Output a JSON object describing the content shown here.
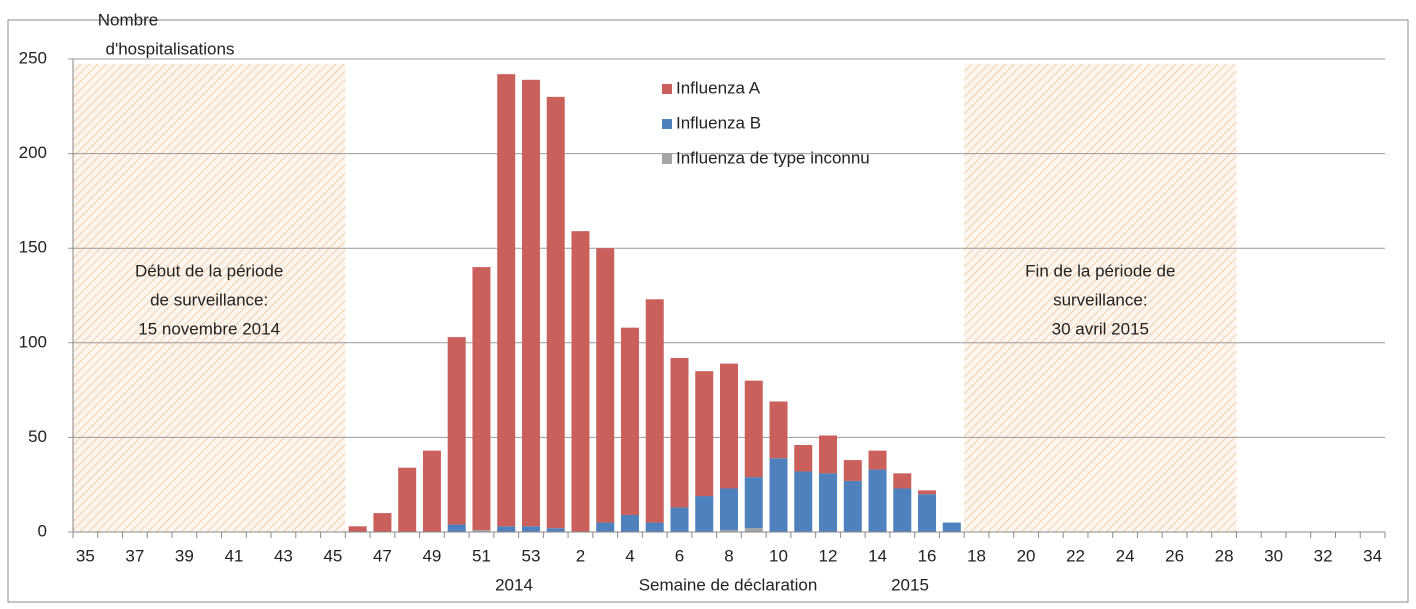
{
  "chart_data": {
    "type": "stacked_bar",
    "y_label": [
      "Nombre",
      "d'hospitalisations"
    ],
    "x_label": "Semaine de déclaration",
    "year_labels": [
      "2014",
      "2015"
    ],
    "categories": [
      "35",
      null,
      "37",
      null,
      "39",
      null,
      "41",
      null,
      "43",
      null,
      "45",
      null,
      "47",
      null,
      "49",
      null,
      "51",
      null,
      "53",
      null,
      "2",
      null,
      "4",
      null,
      "6",
      null,
      "8",
      null,
      "10",
      null,
      "12",
      null,
      "14",
      null,
      "16",
      null,
      "18",
      null,
      "20",
      null,
      "22",
      null,
      "24",
      null,
      "26",
      null,
      "28",
      null,
      "30",
      null,
      "32",
      null,
      "34"
    ],
    "series": [
      {
        "name": "Influenza de type inconnu",
        "color": "#a5a5a5",
        "values": [
          null,
          null,
          null,
          null,
          null,
          null,
          null,
          null,
          null,
          null,
          null,
          null,
          null,
          null,
          null,
          null,
          1,
          null,
          null,
          null,
          null,
          null,
          null,
          null,
          null,
          null,
          1,
          2,
          null,
          null,
          null,
          null,
          null,
          null,
          null,
          null,
          null,
          null,
          null,
          null,
          null,
          null,
          null,
          null,
          null,
          null,
          null,
          null,
          null,
          null,
          null,
          null,
          null
        ]
      },
      {
        "name": "Influenza B",
        "color": "#4f81bd",
        "values": [
          null,
          null,
          null,
          null,
          null,
          null,
          null,
          null,
          null,
          null,
          null,
          null,
          null,
          null,
          null,
          4,
          null,
          3,
          3,
          2,
          null,
          5,
          9,
          5,
          13,
          19,
          22,
          27,
          39,
          32,
          31,
          27,
          33,
          23,
          20,
          5,
          null,
          null,
          null,
          null,
          null,
          null,
          null,
          null,
          null,
          null,
          null,
          null,
          null,
          null,
          null,
          null,
          null
        ]
      },
      {
        "name": "Influenza A",
        "color": "#c9605c",
        "values": [
          null,
          null,
          null,
          null,
          null,
          null,
          null,
          null,
          null,
          null,
          null,
          3,
          10,
          34,
          43,
          99,
          139,
          239,
          236,
          228,
          159,
          145,
          99,
          118,
          79,
          66,
          66,
          51,
          30,
          14,
          20,
          11,
          10,
          8,
          2,
          null,
          null,
          null,
          null,
          null,
          null,
          null,
          null,
          null,
          null,
          null,
          null,
          null,
          null,
          null,
          null,
          null,
          null
        ]
      }
    ],
    "legend_order": [
      2,
      1,
      0
    ],
    "ylim": [
      0,
      250
    ],
    "yticks": [
      0,
      50,
      100,
      150,
      200,
      250
    ],
    "grid": true,
    "regions": [
      {
        "from": "35",
        "to": "45",
        "lines": [
          "Début de la période",
          "de surveillance:",
          "15 novembre 2014"
        ]
      },
      {
        "from": "18",
        "to": "28",
        "lines": [
          "Fin de la période de",
          "surveillance:",
          "30 avril 2015"
        ]
      }
    ]
  }
}
